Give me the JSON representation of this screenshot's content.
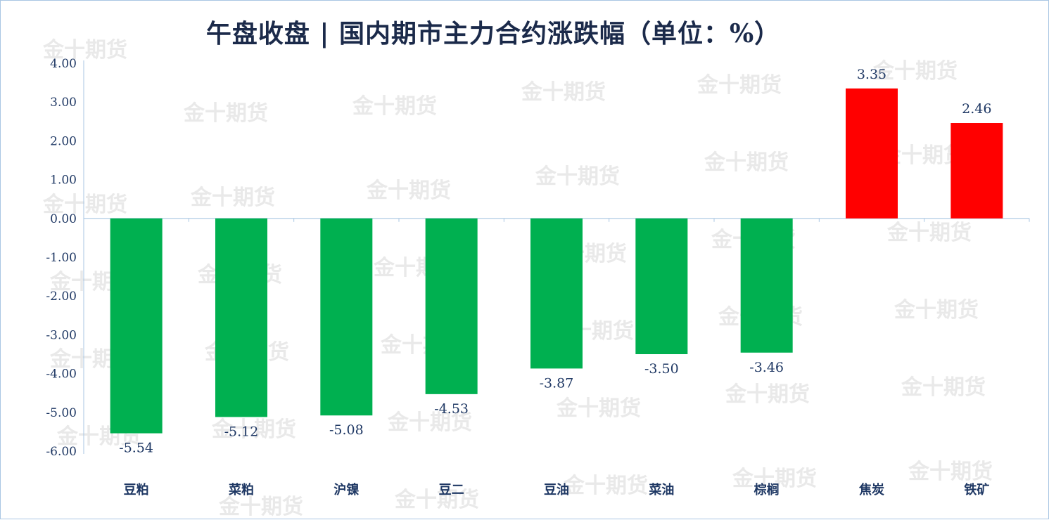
{
  "chart_data": {
    "type": "bar",
    "title": "午盘收盘 | 国内期市主力合约涨跌幅（单位：%）",
    "categories": [
      "豆粕",
      "菜粕",
      "沪镍",
      "豆二",
      "豆油",
      "菜油",
      "棕榈",
      "焦炭",
      "铁矿"
    ],
    "values": [
      -5.54,
      -5.12,
      -5.08,
      -4.53,
      -3.87,
      -3.5,
      -3.46,
      3.35,
      2.46
    ],
    "value_labels": [
      "-5.54",
      "-5.12",
      "-5.08",
      "-4.53",
      "-3.87",
      "-3.50",
      "-3.46",
      "3.35",
      "2.46"
    ],
    "yticks": [
      "4.00",
      "3.00",
      "2.00",
      "1.00",
      "0.00",
      "-1.00",
      "-2.00",
      "-3.00",
      "-4.00",
      "-5.00",
      "-6.00"
    ],
    "ylim": [
      -6,
      4
    ],
    "grid": false,
    "colors": {
      "negative": "#00b050",
      "positive": "#ff0000"
    }
  },
  "watermark": "金十期货"
}
